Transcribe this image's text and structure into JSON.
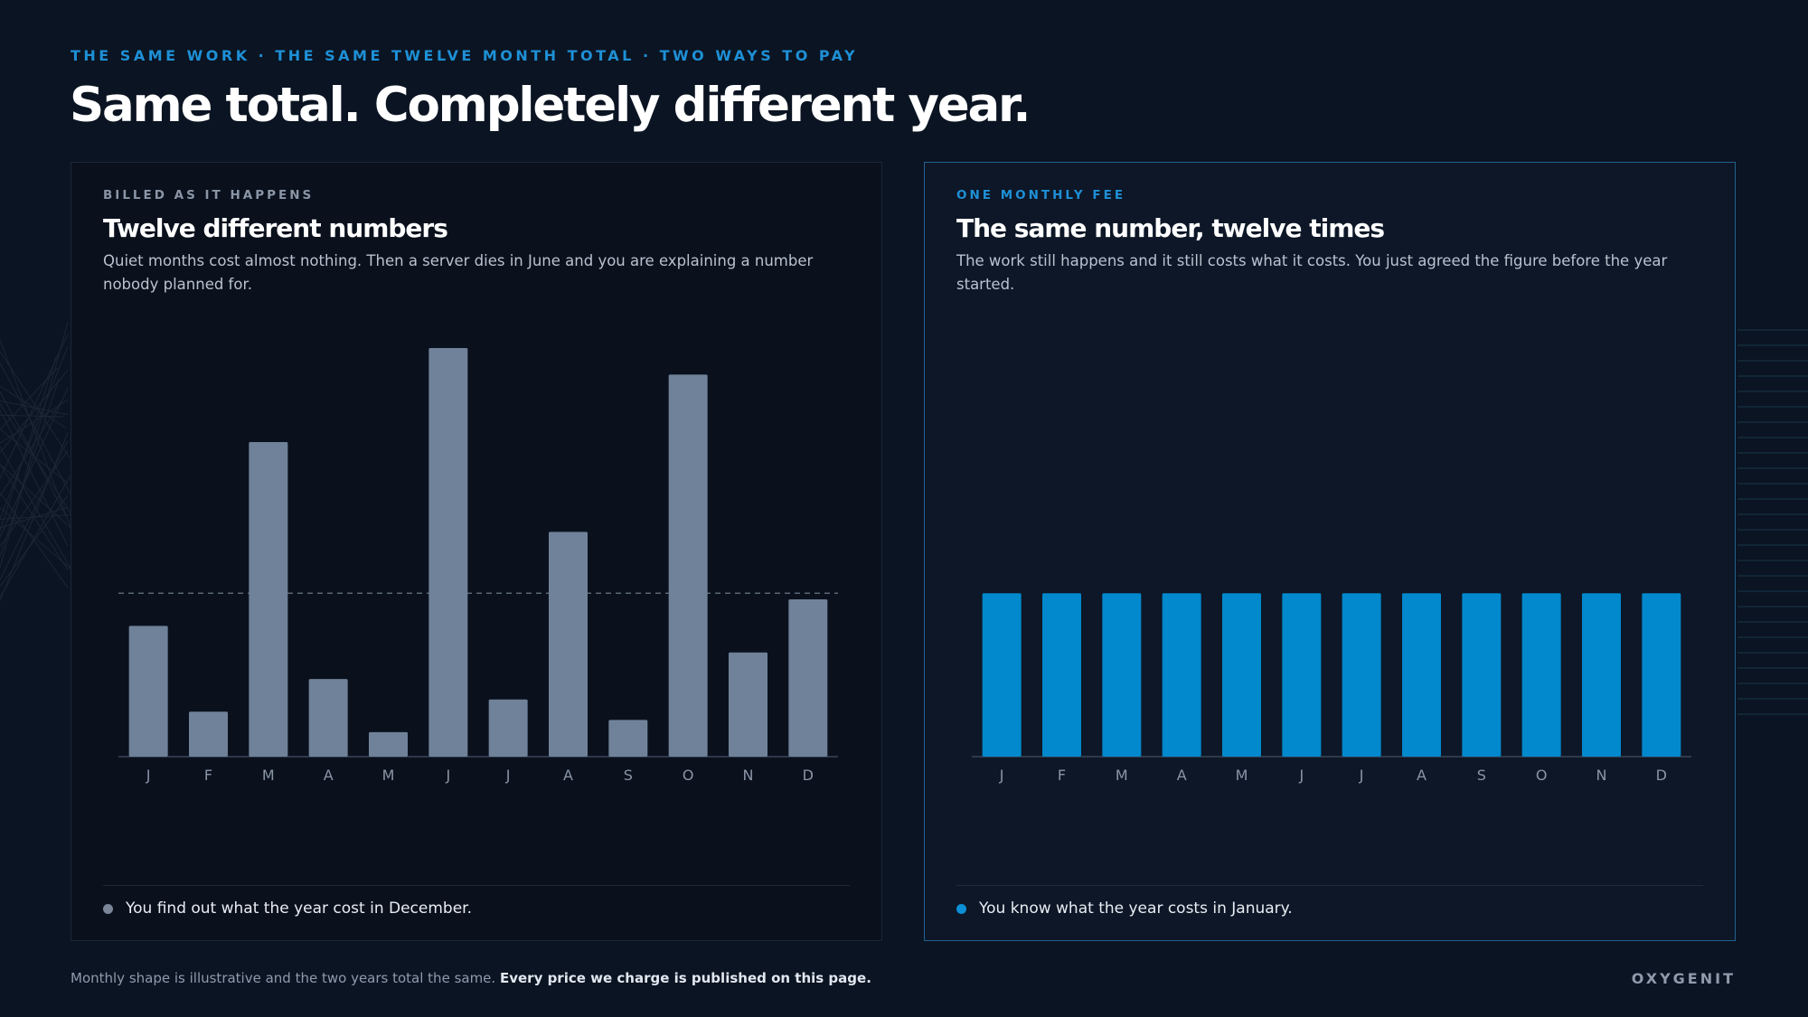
{
  "header": {
    "eyebrow": "THE SAME WORK · THE SAME TWELVE MONTH TOTAL · TWO WAYS TO PAY",
    "title": "Same total. Completely different year."
  },
  "panels": [
    {
      "eyebrow": "BILLED AS IT HAPPENS",
      "title": "Twelve different numbers",
      "description": "Quiet months cost almost nothing. Then a server dies in June and you are explaining a number nobody planned for.",
      "footnote": "You find out what the year cost in December."
    },
    {
      "eyebrow": "ONE MONTHLY FEE",
      "title": "The same number, twelve times",
      "description": "The work still happens and it still costs what it costs. You just agreed the figure before the year started.",
      "footnote": "You know what the year costs in January."
    }
  ],
  "chart_data": [
    {
      "type": "bar",
      "categories": [
        "J",
        "F",
        "M",
        "A",
        "M",
        "J",
        "J",
        "A",
        "S",
        "O",
        "N",
        "D"
      ],
      "values": [
        0.32,
        0.11,
        0.77,
        0.19,
        0.06,
        1.0,
        0.14,
        0.55,
        0.09,
        0.935,
        0.255,
        0.385
      ],
      "reference_line": 0.4,
      "colors": {
        "bar": "#6f8299",
        "reference": "#5a6575",
        "axis": "#3a4556",
        "tick": "#8a95a6"
      }
    },
    {
      "type": "bar",
      "categories": [
        "J",
        "F",
        "M",
        "A",
        "M",
        "J",
        "J",
        "A",
        "S",
        "O",
        "N",
        "D"
      ],
      "values": [
        0.4,
        0.4,
        0.4,
        0.4,
        0.4,
        0.4,
        0.4,
        0.4,
        0.4,
        0.4,
        0.4,
        0.4
      ],
      "colors": {
        "bar": "#0288cc",
        "axis": "#3a4556",
        "tick": "#8a95a6"
      }
    }
  ],
  "footer": {
    "note": "Monthly shape is illustrative and the two years total the same.",
    "note_bold": "Every price we charge is published on this page.",
    "brand": "OXYGENIT"
  }
}
